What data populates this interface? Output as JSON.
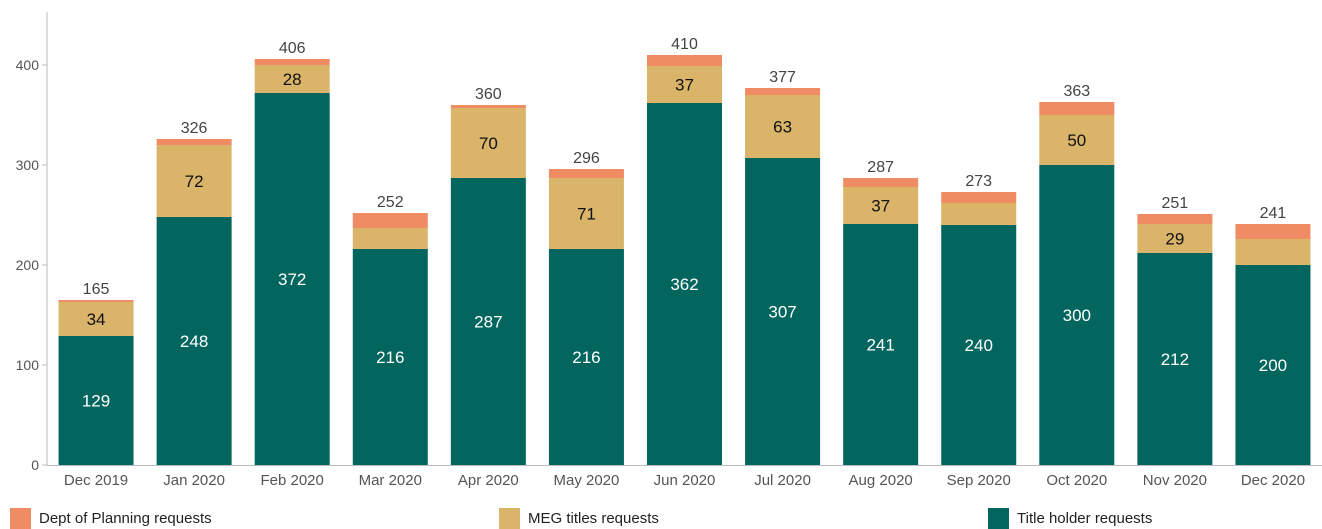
{
  "chart_data": {
    "type": "bar",
    "stacked": true,
    "categories": [
      "Dec 2019",
      "Jan 2020",
      "Feb 2020",
      "Mar 2020",
      "Apr 2020",
      "May 2020",
      "Jun 2020",
      "Jul 2020",
      "Aug 2020",
      "Sep 2020",
      "Oct 2020",
      "Nov 2020",
      "Dec 2020"
    ],
    "series": [
      {
        "name": "Title holder requests",
        "color": "#02665e",
        "values": [
          129,
          248,
          372,
          216,
          287,
          216,
          362,
          307,
          241,
          240,
          300,
          212,
          200
        ]
      },
      {
        "name": "MEG titles requests",
        "color": "#d9b469",
        "values": [
          34,
          72,
          28,
          21,
          70,
          71,
          37,
          63,
          37,
          22,
          50,
          29,
          26
        ]
      },
      {
        "name": "Dept of Planning requests",
        "color": "#f08c63",
        "values": [
          2,
          6,
          6,
          15,
          3,
          9,
          11,
          7,
          9,
          11,
          13,
          10,
          15
        ]
      }
    ],
    "segment_labels": {
      "Title holder requests": [
        "129",
        "248",
        "372",
        "216",
        "287",
        "216",
        "362",
        "307",
        "241",
        "240",
        "300",
        "212",
        "200"
      ],
      "MEG titles requests": [
        "34",
        "72",
        "28",
        "",
        "70",
        "71",
        "37",
        "63",
        "37",
        "",
        "50",
        "29",
        ""
      ]
    },
    "totals": [
      "165",
      "326",
      "406",
      "252",
      "360",
      "296",
      "410",
      "377",
      "287",
      "273",
      "363",
      "251",
      "241"
    ],
    "ylim": [
      0,
      450
    ],
    "yticks": [
      "0",
      "100",
      "200",
      "300",
      "400"
    ],
    "grid": false,
    "legend_position": "bottom",
    "legend": [
      "Dept of Planning requests",
      "MEG titles requests",
      "Title holder requests"
    ]
  },
  "colors": {
    "axis": "#bbbbbb",
    "tick_text": "#555555",
    "total_text": "#444444",
    "label_light": "#ffffff",
    "label_dark": "#111111"
  }
}
